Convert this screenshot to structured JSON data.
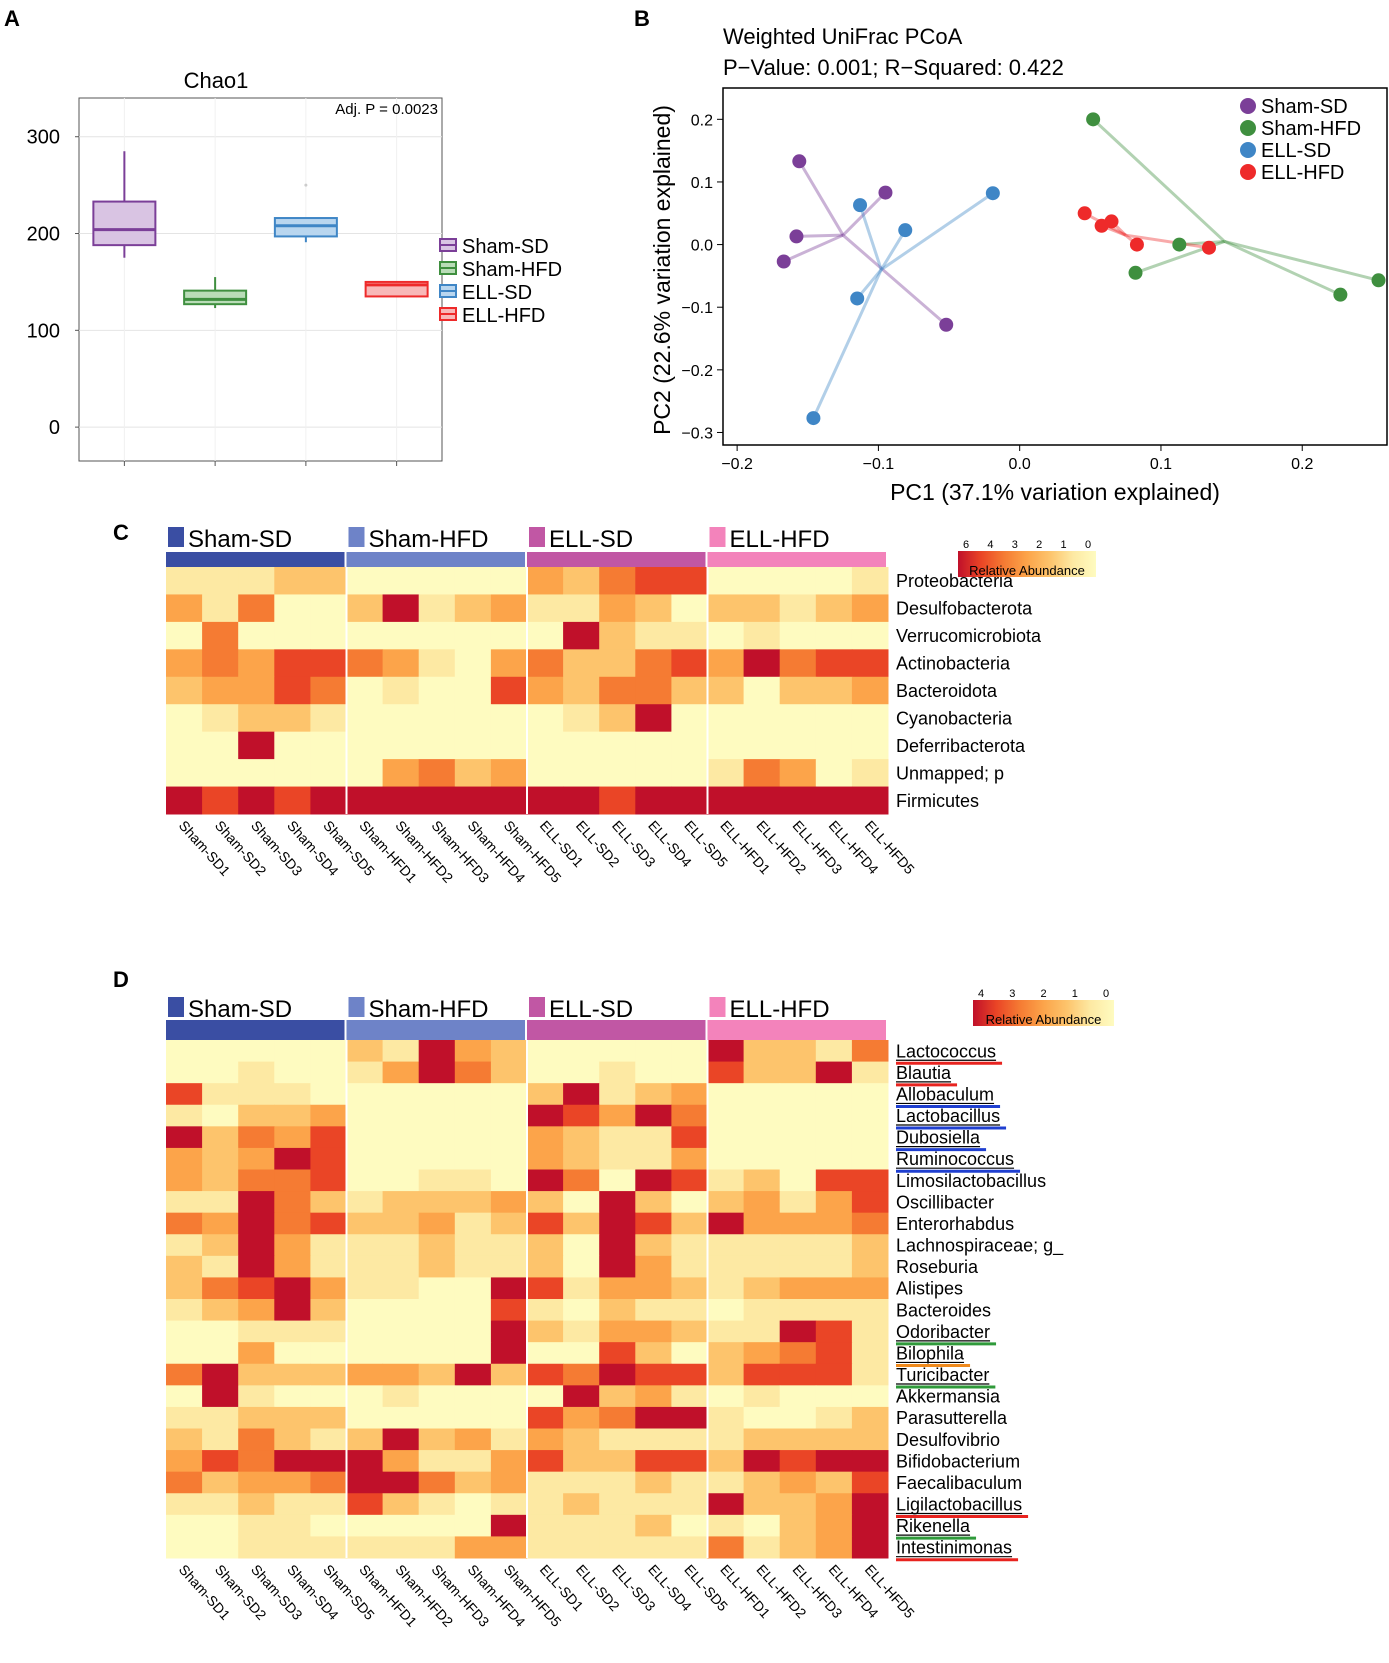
{
  "panel_letters": {
    "a": "A",
    "b": "B",
    "c": "C",
    "d": "D"
  },
  "colors": {
    "sham_sd": "#7b3f98",
    "sham_hfd": "#3f8f3f",
    "ell_sd": "#3f86c6",
    "ell_hfd": "#ee2a2a",
    "grp_sham_sd": "#3a4ea3",
    "grp_sham_hfd": "#6e83c8",
    "grp_ell_sd": "#c157a4",
    "grp_ell_hfd": "#f383bb",
    "underline_red": "#e8231f",
    "underline_blue": "#1f3fd0",
    "underline_green": "#2f9a3a",
    "underline_orange": "#f08a1c"
  },
  "chart_data": [
    {
      "type": "box",
      "title": "Chao1",
      "annotation": "Adj. P =  0.0023",
      "ylim": [
        -35,
        340
      ],
      "yticks": [
        0,
        100,
        200,
        300
      ],
      "ytick_labels": [
        "0",
        "100",
        "200",
        "300"
      ],
      "legend": [
        "Sham-SD",
        "Sham-HFD",
        "ELL-SD",
        "ELL-HFD"
      ],
      "groups": [
        {
          "name": "Sham-SD",
          "min": 175,
          "q1": 188,
          "median": 204,
          "q3": 233,
          "max": 285,
          "outliers": []
        },
        {
          "name": "Sham-HFD",
          "min": 123,
          "q1": 127,
          "median": 132,
          "q3": 141,
          "max": 155,
          "outliers": []
        },
        {
          "name": "ELL-SD",
          "min": 191,
          "q1": 197,
          "median": 208,
          "q3": 216,
          "max": 216,
          "outliers": [
            250
          ]
        },
        {
          "name": "ELL-HFD",
          "min": 135,
          "q1": 135,
          "median": 147,
          "q3": 150,
          "max": 150,
          "outliers": []
        }
      ]
    },
    {
      "type": "scatter",
      "title": "Weighted UniFrac PCoA",
      "subtitle": "P−Value: 0.001; R−Squared: 0.422",
      "xlabel": "PC1 (37.1% variation explained)",
      "ylabel": "PC2 (22.6% variation explained)",
      "xlim": [
        -0.21,
        0.26
      ],
      "ylim": [
        -0.32,
        0.25
      ],
      "xticks": [
        -0.2,
        -0.1,
        0.0,
        0.1,
        0.2
      ],
      "xtick_labels": [
        "−0.2",
        "−0.1",
        "0.0",
        "0.1",
        "0.2"
      ],
      "yticks": [
        -0.3,
        -0.2,
        -0.1,
        0.0,
        0.1,
        0.2
      ],
      "ytick_labels": [
        "−0.3",
        "−0.2",
        "−0.1",
        "0.0",
        "0.1",
        "0.2"
      ],
      "series": [
        {
          "name": "Sham-SD",
          "centroid": [
            -0.125,
            0.015
          ],
          "points": [
            [
              -0.156,
              0.133
            ],
            [
              -0.158,
              0.013
            ],
            [
              -0.167,
              -0.027
            ],
            [
              -0.095,
              0.083
            ],
            [
              -0.052,
              -0.128
            ]
          ]
        },
        {
          "name": "Sham-HFD",
          "centroid": [
            0.145,
            0.005
          ],
          "points": [
            [
              0.052,
              0.2
            ],
            [
              0.113,
              0.0
            ],
            [
              0.082,
              -0.045
            ],
            [
              0.227,
              -0.08
            ],
            [
              0.254,
              -0.057
            ]
          ]
        },
        {
          "name": "ELL-SD",
          "centroid": [
            -0.098,
            -0.04
          ],
          "points": [
            [
              -0.113,
              0.063
            ],
            [
              -0.081,
              0.023
            ],
            [
              -0.019,
              0.082
            ],
            [
              -0.115,
              -0.086
            ],
            [
              -0.146,
              -0.277
            ]
          ]
        },
        {
          "name": "ELL-HFD",
          "centroid": [
            0.075,
            0.015
          ],
          "points": [
            [
              0.046,
              0.05
            ],
            [
              0.058,
              0.03
            ],
            [
              0.065,
              0.037
            ],
            [
              0.083,
              0.0
            ],
            [
              0.134,
              -0.005
            ]
          ]
        }
      ]
    },
    {
      "type": "heatmap",
      "groups": [
        "Sham-SD",
        "Sham-HFD",
        "ELL-SD",
        "ELL-HFD"
      ],
      "legend_ticks": [
        "6",
        "4",
        "3",
        "2",
        "1",
        "0"
      ],
      "legend_label": "Relative Abundance",
      "columns": [
        "Sham-SD1",
        "Sham-SD2",
        "Sham-SD3",
        "Sham-SD4",
        "Sham-SD5",
        "Sham-HFD1",
        "Sham-HFD2",
        "Sham-HFD3",
        "Sham-HFD4",
        "Sham-HFD5",
        "ELL-SD1",
        "ELL-SD2",
        "ELL-SD3",
        "ELL-SD4",
        "ELL-SD5",
        "ELL-HFD1",
        "ELL-HFD2",
        "ELL-HFD3",
        "ELL-HFD4",
        "ELL-HFD5"
      ],
      "rows": [
        "Proteobacteria",
        "Desulfobacterota",
        "Verrucomicrobiota",
        "Actinobacteria",
        "Bacteroidota",
        "Cyanobacteria",
        "Deferribacterota",
        "Unmapped; p",
        "Firmicutes"
      ],
      "values": [
        [
          1,
          1,
          1,
          2,
          2,
          0,
          0,
          0,
          0,
          0,
          3,
          2,
          4,
          5,
          5,
          0,
          0,
          0,
          0,
          1
        ],
        [
          3,
          1,
          4,
          0,
          0,
          2,
          6,
          1,
          2,
          3,
          1,
          1,
          3,
          2,
          0,
          2,
          2,
          1,
          2,
          3
        ],
        [
          0,
          4,
          0,
          0,
          0,
          0,
          0,
          0,
          0,
          0,
          0,
          6,
          2,
          1,
          1,
          0,
          1,
          0,
          0,
          0
        ],
        [
          3,
          4,
          3,
          5,
          5,
          4,
          3,
          1,
          0,
          3,
          4,
          2,
          2,
          4,
          5,
          3,
          6,
          4,
          5,
          5
        ],
        [
          2,
          3,
          3,
          5,
          4,
          0,
          1,
          0,
          0,
          5,
          3,
          2,
          4,
          4,
          2,
          2,
          0,
          2,
          2,
          3
        ],
        [
          0,
          1,
          2,
          2,
          1,
          0,
          0,
          0,
          0,
          0,
          0,
          1,
          2,
          6,
          0,
          0,
          0,
          0,
          0,
          0
        ],
        [
          0,
          0,
          6,
          0,
          0,
          0,
          0,
          0,
          0,
          0,
          0,
          0,
          0,
          0,
          0,
          0,
          0,
          0,
          0,
          0
        ],
        [
          0,
          0,
          0,
          0,
          0,
          0,
          3,
          4,
          2,
          3,
          0,
          0,
          0,
          0,
          0,
          1,
          4,
          3,
          0,
          1
        ],
        [
          6,
          5,
          6,
          5,
          6,
          6,
          6,
          6,
          6,
          6,
          6,
          6,
          5,
          6,
          6,
          6,
          6,
          6,
          6,
          6
        ]
      ]
    },
    {
      "type": "heatmap",
      "groups": [
        "Sham-SD",
        "Sham-HFD",
        "ELL-SD",
        "ELL-HFD"
      ],
      "legend_ticks": [
        "4",
        "3",
        "2",
        "1",
        "0"
      ],
      "legend_label": "Relative Abundance",
      "columns": [
        "Sham-SD1",
        "Sham-SD2",
        "Sham-SD3",
        "Sham-SD4",
        "Sham-SD5",
        "Sham-HFD1",
        "Sham-HFD2",
        "Sham-HFD3",
        "Sham-HFD4",
        "Sham-HFD5",
        "ELL-SD1",
        "ELL-SD2",
        "ELL-SD3",
        "ELL-SD4",
        "ELL-SD5",
        "ELL-HFD1",
        "ELL-HFD2",
        "ELL-HFD3",
        "ELL-HFD4",
        "ELL-HFD5"
      ],
      "rows": [
        "Lactococcus",
        "Blautia",
        "Allobaculum",
        "Lactobacillus",
        "Dubosiella",
        "Ruminococcus",
        "Limosilactobacillus",
        "Oscillibacter",
        "Enterorhabdus",
        "Lachnospiraceae; g_",
        "Roseburia",
        "Alistipes",
        "Bacteroides",
        "Odoribacter",
        "Bilophila",
        "Turicibacter",
        "Akkermansia",
        "Parasutterella",
        "Desulfovibrio",
        "Bifidobacterium",
        "Faecalibaculum",
        "Ligilactobacillus",
        "Rikenella",
        "Intestinimonas"
      ],
      "row_underline": [
        "red",
        "red",
        "blue",
        "blue",
        "blue",
        "blue",
        "",
        "",
        "",
        "",
        "",
        "",
        "",
        "green",
        "orange",
        "green",
        "",
        "",
        "",
        "",
        "",
        "red",
        "green",
        "red"
      ],
      "values": [
        [
          0,
          0,
          0,
          0,
          0,
          2,
          1,
          6,
          3,
          2,
          0,
          0,
          0,
          0,
          0,
          6,
          2,
          2,
          1,
          4
        ],
        [
          0,
          0,
          1,
          0,
          0,
          1,
          3,
          6,
          4,
          2,
          0,
          0,
          1,
          0,
          0,
          5,
          2,
          2,
          6,
          1
        ],
        [
          5,
          1,
          1,
          1,
          0,
          0,
          0,
          0,
          0,
          0,
          2,
          6,
          1,
          2,
          3,
          0,
          0,
          0,
          0,
          0
        ],
        [
          1,
          0,
          2,
          2,
          3,
          0,
          0,
          0,
          0,
          0,
          6,
          5,
          3,
          6,
          4,
          0,
          0,
          0,
          0,
          0
        ],
        [
          6,
          2,
          4,
          3,
          5,
          0,
          0,
          0,
          0,
          0,
          3,
          2,
          1,
          1,
          5,
          0,
          0,
          0,
          0,
          0
        ],
        [
          3,
          2,
          3,
          6,
          5,
          0,
          0,
          0,
          0,
          0,
          3,
          2,
          1,
          1,
          3,
          0,
          0,
          0,
          0,
          0
        ],
        [
          3,
          2,
          4,
          4,
          5,
          0,
          0,
          1,
          1,
          0,
          6,
          4,
          0,
          6,
          5,
          1,
          2,
          0,
          5,
          5
        ],
        [
          1,
          1,
          6,
          4,
          2,
          1,
          2,
          2,
          2,
          3,
          2,
          0,
          6,
          2,
          0,
          2,
          3,
          1,
          3,
          5
        ],
        [
          4,
          3,
          6,
          4,
          5,
          2,
          2,
          3,
          1,
          2,
          5,
          2,
          6,
          5,
          2,
          6,
          3,
          3,
          3,
          4
        ],
        [
          1,
          2,
          6,
          3,
          1,
          1,
          1,
          2,
          1,
          1,
          2,
          0,
          6,
          2,
          1,
          1,
          1,
          1,
          1,
          2
        ],
        [
          2,
          1,
          6,
          3,
          1,
          1,
          1,
          2,
          1,
          1,
          2,
          0,
          6,
          3,
          1,
          1,
          1,
          1,
          1,
          2
        ],
        [
          2,
          4,
          5,
          6,
          3,
          1,
          1,
          0,
          0,
          6,
          5,
          1,
          3,
          3,
          2,
          1,
          2,
          3,
          3,
          3
        ],
        [
          1,
          2,
          3,
          6,
          2,
          0,
          0,
          0,
          0,
          5,
          1,
          0,
          2,
          1,
          1,
          0,
          1,
          1,
          1,
          1
        ],
        [
          0,
          0,
          1,
          1,
          1,
          0,
          0,
          0,
          0,
          6,
          2,
          1,
          3,
          3,
          2,
          1,
          1,
          6,
          5,
          1
        ],
        [
          0,
          0,
          3,
          0,
          0,
          0,
          0,
          0,
          0,
          6,
          0,
          0,
          5,
          2,
          0,
          2,
          3,
          4,
          5,
          1
        ],
        [
          4,
          6,
          2,
          2,
          2,
          3,
          3,
          2,
          6,
          2,
          5,
          4,
          6,
          5,
          5,
          2,
          5,
          5,
          5,
          1
        ],
        [
          0,
          6,
          1,
          0,
          0,
          0,
          1,
          0,
          0,
          0,
          0,
          6,
          2,
          3,
          1,
          0,
          1,
          0,
          0,
          0
        ],
        [
          1,
          1,
          2,
          2,
          2,
          0,
          0,
          0,
          0,
          0,
          5,
          3,
          4,
          6,
          6,
          1,
          0,
          0,
          1,
          2
        ],
        [
          2,
          1,
          4,
          2,
          1,
          2,
          6,
          2,
          3,
          1,
          3,
          2,
          1,
          1,
          1,
          1,
          2,
          2,
          2,
          2
        ],
        [
          3,
          5,
          4,
          6,
          6,
          6,
          3,
          1,
          1,
          3,
          5,
          2,
          2,
          5,
          5,
          2,
          6,
          5,
          6,
          6
        ],
        [
          4,
          2,
          3,
          3,
          4,
          6,
          6,
          4,
          2,
          3,
          1,
          1,
          1,
          2,
          1,
          1,
          2,
          3,
          2,
          5
        ],
        [
          1,
          1,
          2,
          1,
          1,
          5,
          2,
          1,
          0,
          1,
          1,
          2,
          1,
          1,
          1,
          6,
          2,
          2,
          3,
          6
        ],
        [
          0,
          0,
          1,
          1,
          0,
          0,
          0,
          0,
          0,
          6,
          1,
          1,
          1,
          2,
          0,
          1,
          0,
          2,
          3,
          6
        ],
        [
          0,
          0,
          1,
          1,
          1,
          1,
          1,
          1,
          3,
          3,
          1,
          1,
          1,
          1,
          1,
          4,
          1,
          2,
          3,
          6
        ]
      ]
    }
  ]
}
